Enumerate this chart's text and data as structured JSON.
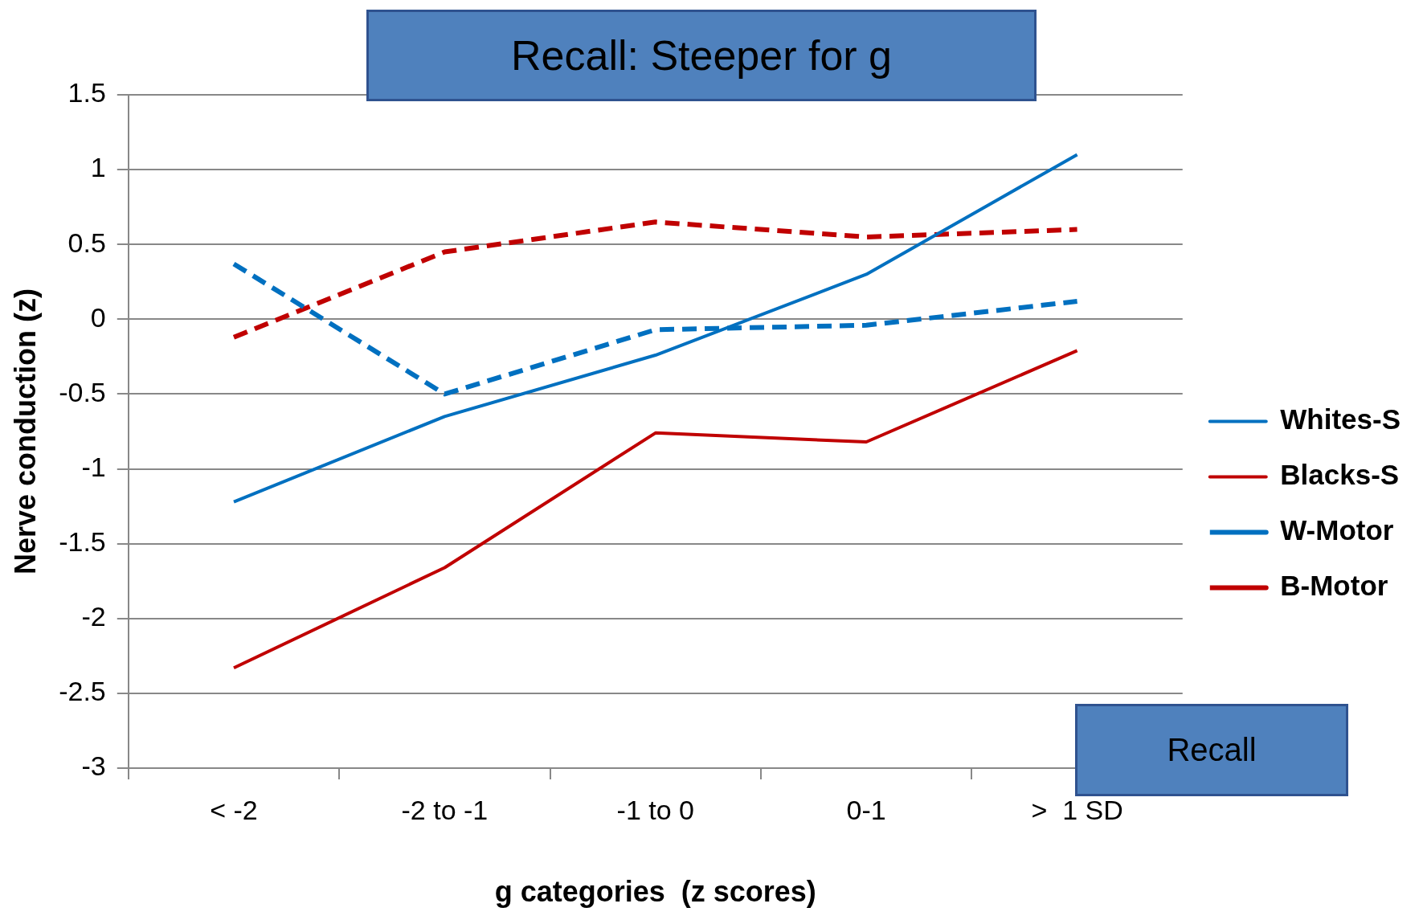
{
  "chart_data": {
    "type": "line",
    "title": "Recall: Steeper for g",
    "xlabel": "g categories  (z scores)",
    "ylabel": "Nerve conduction (z)",
    "annotations": [
      "Recall"
    ],
    "categories": [
      "< -2",
      "-2 to -1",
      "-1 to 0",
      "0-1",
      ">  1 SD"
    ],
    "ylim": [
      -3,
      1.5
    ],
    "yticks": [
      -3,
      -2.5,
      -2,
      -1.5,
      -1,
      -0.5,
      0,
      0.5,
      1,
      1.5
    ],
    "grid": "y",
    "legend": "right",
    "marker": "none",
    "series": [
      {
        "name": "Whites-S",
        "color": "#0070c0",
        "line_style": "solid",
        "values": [
          -1.22,
          -0.65,
          -0.24,
          0.3,
          1.1
        ]
      },
      {
        "name": "Blacks-S",
        "color": "#c00000",
        "line_style": "solid",
        "values": [
          -2.33,
          -1.66,
          -0.76,
          -0.82,
          -0.21
        ]
      },
      {
        "name": "W-Motor",
        "color": "#0070c0",
        "line_style": "dashed",
        "values": [
          0.37,
          -0.5,
          -0.07,
          -0.04,
          0.12
        ]
      },
      {
        "name": "B-Motor",
        "color": "#c00000",
        "line_style": "dashed",
        "values": [
          -0.12,
          0.45,
          0.65,
          0.55,
          0.6
        ]
      }
    ]
  }
}
